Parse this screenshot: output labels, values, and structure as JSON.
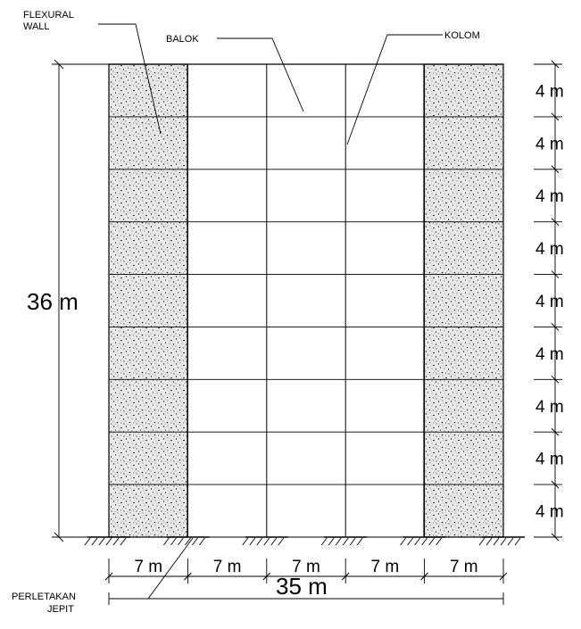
{
  "labels": {
    "flexural_wall_line1": "FLEXURAL",
    "flexural_wall_line2": "WALL",
    "balok": "BALOK",
    "kolom": "KOLOM",
    "perletakan_line1": "PERLETAKAN",
    "perletakan_line2": "JEPIT"
  },
  "dimensions": {
    "total_height": "36 m",
    "total_width": "35 m",
    "story_heights": [
      "4 m",
      "4 m",
      "4 m",
      "4 m",
      "4 m",
      "4 m",
      "4 m",
      "4 m",
      "4 m"
    ],
    "bay_widths": [
      "7 m",
      "7 m",
      "7 m",
      "7 m",
      "7 m"
    ]
  },
  "colors": {
    "line": "#000000",
    "wall_fill": "#e6e6e6",
    "background": "#ffffff"
  }
}
